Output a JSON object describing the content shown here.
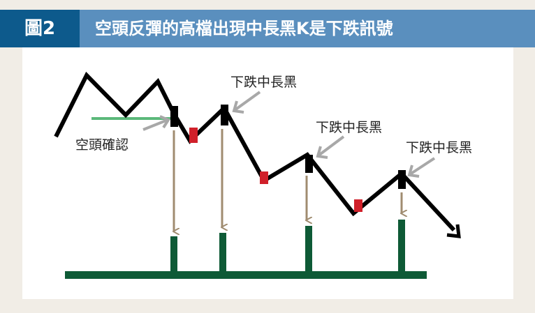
{
  "header": {
    "tag": "圖2",
    "title": "空頭反彈的高檔出現中長黑K是下跌訊號"
  },
  "diagram": {
    "labels": {
      "bearish_confirm": "空頭確認",
      "long_black_1": "下跌中長黑",
      "long_black_2": "下跌中長黑",
      "long_black_3": "下跌中長黑"
    },
    "colors": {
      "header_bg": "#5a8fbe",
      "tag_bg": "#0d5a8c",
      "price_line": "#000000",
      "red_candle": "#d0202a",
      "confirm_line": "#5bb87a",
      "volume_bar": "#0e5a36",
      "arrow_down": "#a08c70",
      "pointer_arrow": "#a8a8a8"
    }
  }
}
